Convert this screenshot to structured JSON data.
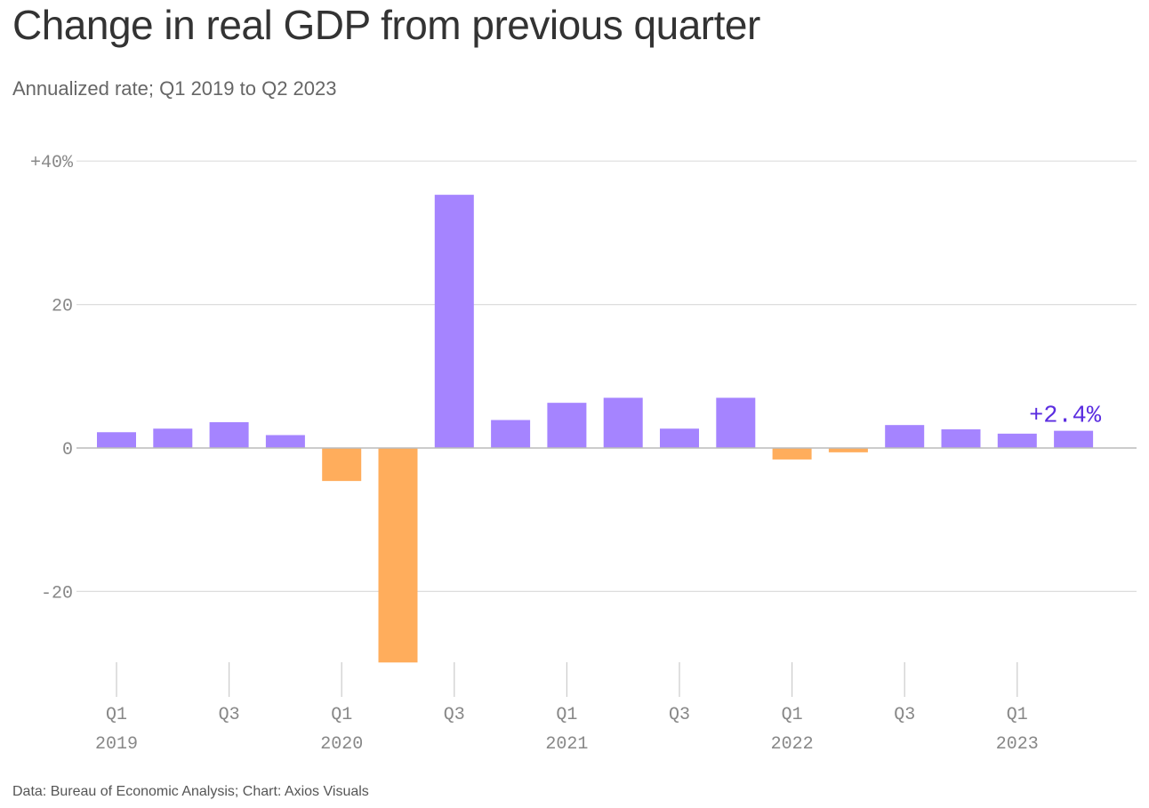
{
  "title": "Change in real GDP from previous quarter",
  "subtitle": "Annualized rate; Q1 2019 to Q2 2023",
  "source": "Data: Bureau of Economic Analysis; Chart: Axios Visuals",
  "colors": {
    "positive": "#a584ff",
    "negative": "#ffad5c",
    "annotation": "#5b2de0",
    "grid": "#dddddd",
    "axis": "#bbbbbb"
  },
  "chart_data": {
    "type": "bar",
    "title": "Change in real GDP from previous quarter",
    "subtitle": "Annualized rate; Q1 2019 to Q2 2023",
    "xlabel": "",
    "ylabel": "",
    "ylim": [
      -30,
      40
    ],
    "yticks": [
      {
        "value": 40,
        "label": "+40%"
      },
      {
        "value": 20,
        "label": "20"
      },
      {
        "value": 0,
        "label": "0"
      },
      {
        "value": -20,
        "label": "-20"
      }
    ],
    "categories": [
      "Q1 2019",
      "Q2 2019",
      "Q3 2019",
      "Q4 2019",
      "Q1 2020",
      "Q2 2020",
      "Q3 2020",
      "Q4 2020",
      "Q1 2021",
      "Q2 2021",
      "Q3 2021",
      "Q4 2021",
      "Q1 2022",
      "Q2 2022",
      "Q3 2022",
      "Q4 2022",
      "Q1 2023",
      "Q2 2023"
    ],
    "values": [
      2.2,
      2.7,
      3.6,
      1.8,
      -4.6,
      -29.9,
      35.3,
      3.9,
      6.3,
      7.0,
      2.7,
      7.0,
      -1.6,
      -0.6,
      3.2,
      2.6,
      2.0,
      2.4
    ],
    "xticks": [
      {
        "index": 0,
        "quarter": "Q1",
        "year": "2019"
      },
      {
        "index": 2,
        "quarter": "Q3",
        "year": ""
      },
      {
        "index": 4,
        "quarter": "Q1",
        "year": "2020"
      },
      {
        "index": 6,
        "quarter": "Q3",
        "year": ""
      },
      {
        "index": 8,
        "quarter": "Q1",
        "year": "2021"
      },
      {
        "index": 10,
        "quarter": "Q3",
        "year": ""
      },
      {
        "index": 12,
        "quarter": "Q1",
        "year": "2022"
      },
      {
        "index": 14,
        "quarter": "Q3",
        "year": ""
      },
      {
        "index": 16,
        "quarter": "Q1",
        "year": "2023"
      }
    ],
    "annotation": {
      "index": 17,
      "text": "+2.4%"
    },
    "grid": true
  }
}
